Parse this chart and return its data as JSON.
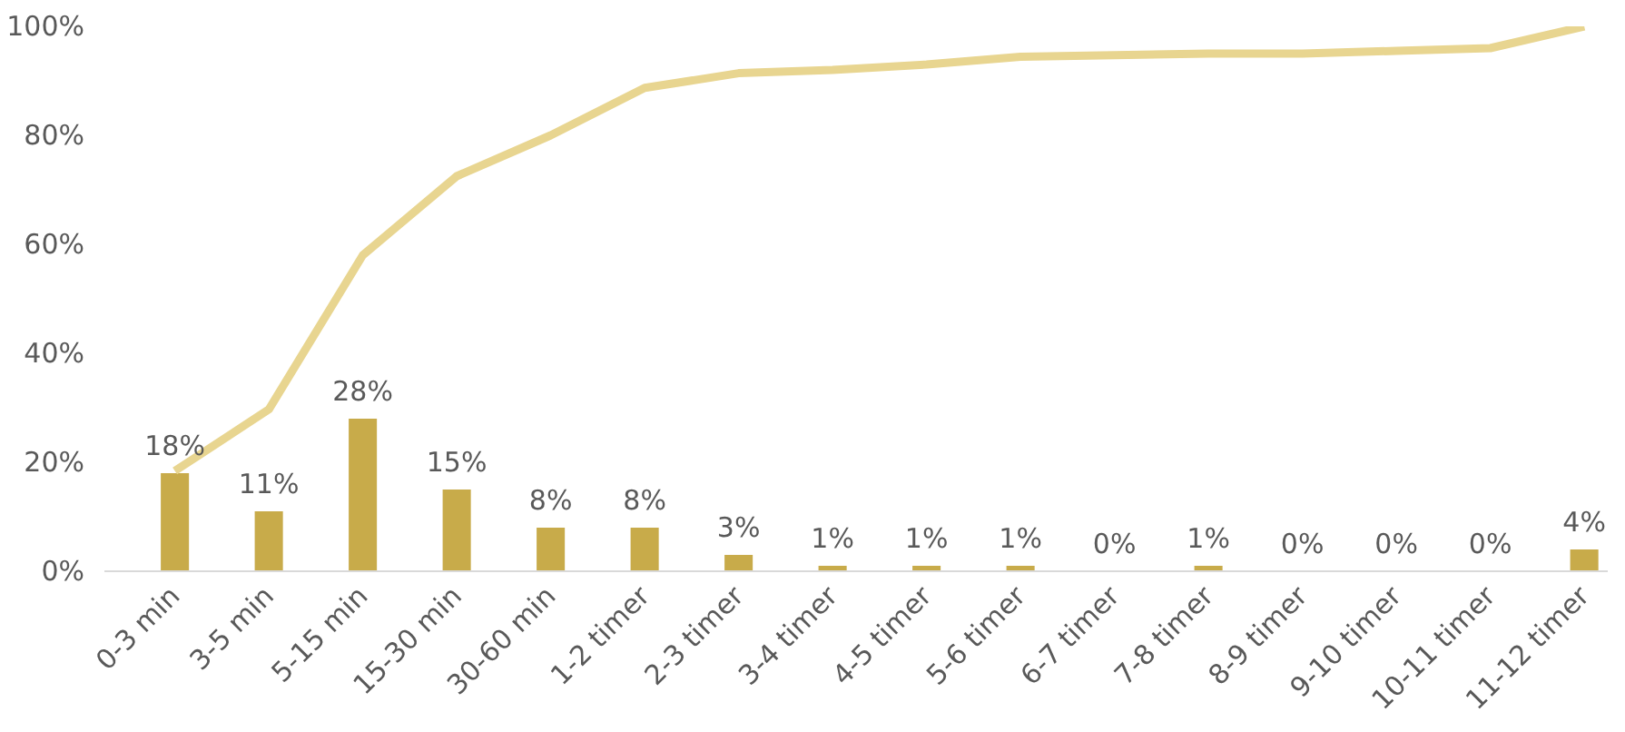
{
  "chart_data": {
    "type": "bar",
    "categories": [
      "0-3 min",
      "3-5 min",
      "5-15 min",
      "15-30 min",
      "30-60 min",
      "1-2 timer",
      "2-3 timer",
      "3-4 timer",
      "4-5 timer",
      "5-6 timer",
      "6-7 timer",
      "7-8 timer",
      "8-9 timer",
      "9-10 timer",
      "10-11 timer",
      "11-12 timer"
    ],
    "series": [
      {
        "color": "#c8ab4a",
        "values": [
          18,
          11,
          28,
          15,
          8,
          8,
          3,
          1,
          1,
          1,
          0,
          1,
          0,
          0,
          0,
          4
        ],
        "value_labels": [
          "18%",
          "11%",
          "28%",
          "15%",
          "8%",
          "8%",
          "3%",
          "1%",
          "1%",
          "1%",
          "0%",
          "1%",
          "0%",
          "0%",
          "0%",
          "4%"
        ]
      },
      {
        "type": "line",
        "color": "#e8d590",
        "values": [
          18.4,
          29.7,
          58,
          72.5,
          80,
          88.7,
          91.4,
          92,
          93,
          94.4,
          94.7,
          95,
          95,
          95.5,
          96,
          100
        ]
      }
    ],
    "ylim": [
      0,
      100
    ],
    "yticks": [
      {
        "value": 0,
        "label": "0%"
      },
      {
        "value": 20,
        "label": "20%"
      },
      {
        "value": 40,
        "label": "40%"
      },
      {
        "value": 60,
        "label": "60%"
      },
      {
        "value": 80,
        "label": "80%"
      },
      {
        "value": 100,
        "label": "100%"
      }
    ],
    "grid": false
  }
}
